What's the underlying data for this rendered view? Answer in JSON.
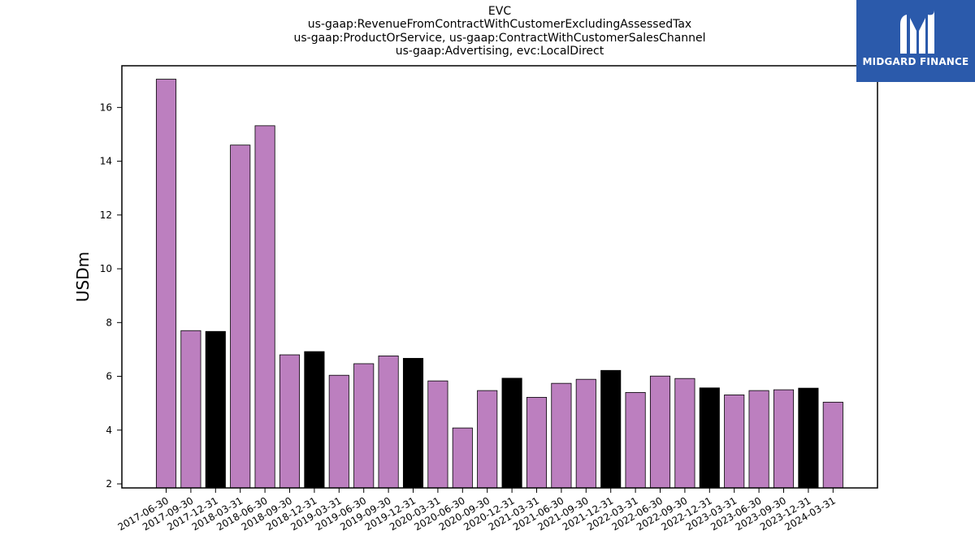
{
  "chart_data": {
    "type": "bar",
    "title_lines": [
      "EVC",
      "us-gaap:RevenueFromContractWithCustomerExcludingAssessedTax",
      "us-gaap:ProductOrService, us-gaap:ContractWithCustomerSalesChannel",
      "us-gaap:Advertising, evc:LocalDirect"
    ],
    "ylabel": "USDm",
    "xlabel": "",
    "ylim": [
      1.85,
      17.55
    ],
    "yticks": [
      2,
      4,
      6,
      8,
      10,
      12,
      14,
      16
    ],
    "grid": false,
    "categories": [
      "2017-06-30",
      "2017-09-30",
      "2017-12-31",
      "2018-03-31",
      "2018-06-30",
      "2018-09-30",
      "2018-12-31",
      "2019-03-31",
      "2019-06-30",
      "2019-09-30",
      "2019-12-31",
      "2020-03-31",
      "2020-06-30",
      "2020-09-30",
      "2020-12-31",
      "2021-03-31",
      "2021-06-30",
      "2021-09-30",
      "2021-12-31",
      "2022-03-31",
      "2022-06-30",
      "2022-09-30",
      "2022-12-31",
      "2023-03-31",
      "2023-06-30",
      "2023-09-30",
      "2023-12-31",
      "2024-03-31"
    ],
    "values": [
      17.05,
      7.7,
      7.67,
      14.6,
      15.32,
      6.8,
      6.92,
      6.04,
      6.47,
      6.76,
      6.67,
      5.83,
      4.08,
      5.47,
      5.93,
      5.22,
      5.74,
      5.89,
      6.22,
      5.4,
      6.01,
      5.92,
      5.57,
      5.31,
      5.47,
      5.5,
      5.56,
      5.04
    ],
    "bar_colors": {
      "quarter": "#bc7fbf",
      "year_end": "#000000",
      "edge": "#000000"
    }
  },
  "logo": {
    "text": "MIDGARD FINANCE",
    "background": "#2b5aab",
    "foreground": "#ffffff"
  }
}
